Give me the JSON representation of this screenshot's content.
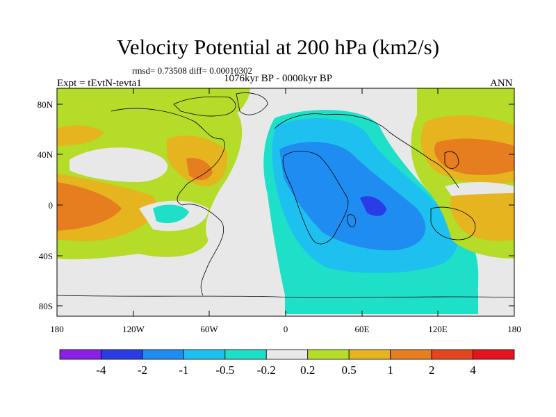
{
  "title": "Velocity Potential at 200 hPa (km2/s)",
  "stats": "rmsd= 0.73508 diff= 0.00010302",
  "period": "1076kyr BP - 0000kyr BP",
  "experiment": "Expt = tEvtN-tevta1",
  "season": "ANN",
  "map": {
    "y_axis_labels": [
      "80N",
      "40N",
      "0",
      "40S",
      "80S"
    ],
    "x_axis_labels": [
      "180",
      "120W",
      "60W",
      "0",
      "60E",
      "120E",
      "180"
    ]
  },
  "colorbar": {
    "labels": [
      "-4",
      "-2",
      "-1",
      "-0.5",
      "-0.2",
      "0.2",
      "0.5",
      "1",
      "2",
      "4"
    ],
    "colors": [
      "#8a20e6",
      "#2a3ce6",
      "#1e8cf0",
      "#1ec0f0",
      "#1ee0c8",
      "#e8e8e8",
      "#b4dc28",
      "#e6b41e",
      "#e67d1e",
      "#e6461e",
      "#e6141e"
    ]
  },
  "colors": {
    "neg_strong": "#2a3ce6",
    "neg_mid": "#1e8cf0",
    "neg_weak": "#1ec0f0",
    "neg_light": "#1ee0c8",
    "neutral": "#e8e8e8",
    "pos_light": "#b4dc28",
    "pos_mid": "#e6b41e",
    "pos_strong": "#e67d1e"
  }
}
